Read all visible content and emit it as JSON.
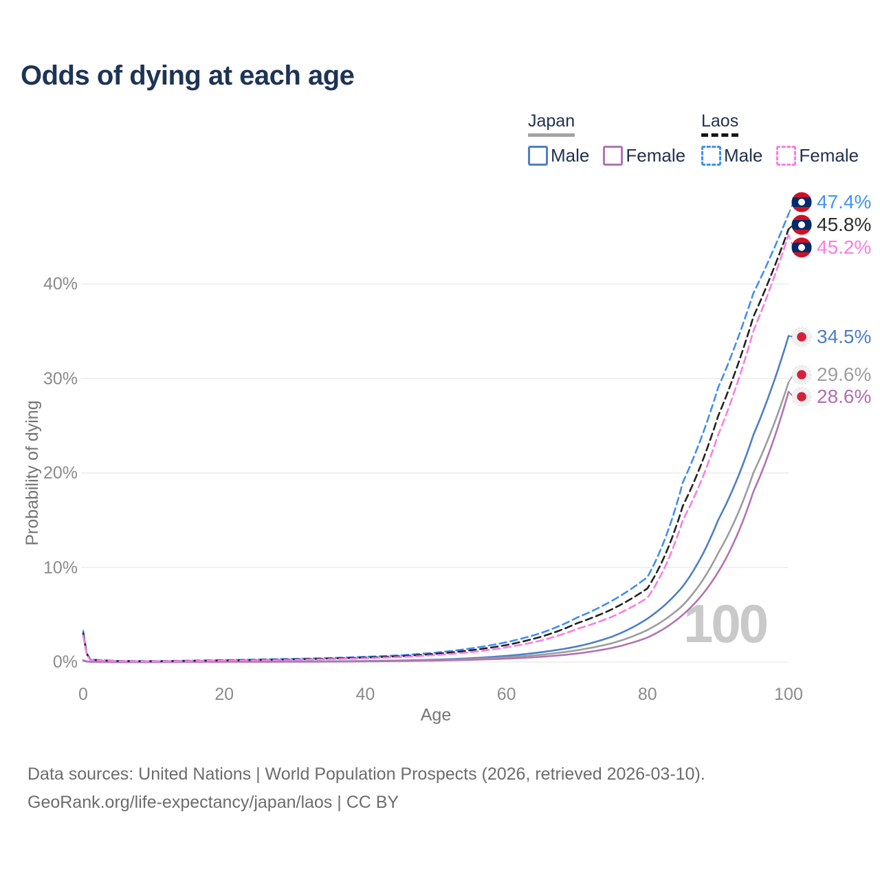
{
  "title": "Odds of dying at each age",
  "hover_age_label": "100",
  "legend": {
    "groups": [
      {
        "id": "japan",
        "label": "Japan",
        "line_style": "solid",
        "underline_color": "#a3a3a3",
        "items": [
          {
            "id": "japan_male",
            "label": "Male",
            "color": "#4d7ec8"
          },
          {
            "id": "japan_female",
            "label": "Female",
            "color": "#b273b2"
          }
        ]
      },
      {
        "id": "laos",
        "label": "Laos",
        "line_style": "dashed",
        "underline_color": "#151515",
        "items": [
          {
            "id": "laos_male",
            "label": "Male",
            "color": "#3f8df5"
          },
          {
            "id": "laos_female",
            "label": "Female",
            "color": "#fb7ce5"
          }
        ]
      }
    ]
  },
  "axes": {
    "y": {
      "title": "Probability of dying",
      "ticks": [
        "0%",
        "10%",
        "20%",
        "30%",
        "40%"
      ],
      "tick_values": [
        0,
        10,
        20,
        30,
        40
      ]
    },
    "x": {
      "title": "Age",
      "ticks": [
        "0",
        "20",
        "40",
        "60",
        "80",
        "100"
      ],
      "tick_values": [
        0,
        20,
        40,
        60,
        80,
        100
      ]
    }
  },
  "footer": {
    "line1": "Data sources: United Nations | World Population Prospects (2026, retrieved 2026-03-10).",
    "line2": "GeoRank.org/life-expectancy/japan/laos | CC BY"
  },
  "flag_colors": {
    "laos": {
      "red": "#ce1126",
      "blue": "#002a6a",
      "disc": "#ffffff"
    },
    "japan": {
      "bg": "#f1f1f1",
      "ring": "#e2e2e2",
      "dot": "#d6203c"
    }
  },
  "chart_data": {
    "type": "line",
    "title": "Odds of dying at each age",
    "xlabel": "Age",
    "ylabel": "Probability of dying",
    "xlim": [
      0,
      100
    ],
    "ylim": [
      0,
      47.5
    ],
    "grid": true,
    "legend_position": "top-right",
    "x_knots": [
      0,
      1,
      5,
      10,
      15,
      20,
      25,
      30,
      35,
      40,
      45,
      50,
      55,
      60,
      65,
      70,
      75,
      80,
      85,
      90,
      95,
      100
    ],
    "series": [
      {
        "id": "japan_male",
        "name": "Japan Male",
        "country": "japan",
        "sex": "male",
        "style": "solid",
        "color": "#4d7ec8",
        "label_color": "#4d7ec8",
        "end_label": "34.5%",
        "end_value_pct": 34.5,
        "values_pct": [
          0.19,
          0.03,
          0.01,
          0.01,
          0.03,
          0.05,
          0.05,
          0.06,
          0.08,
          0.11,
          0.17,
          0.26,
          0.41,
          0.66,
          1.05,
          1.65,
          2.7,
          4.6,
          8.0,
          15.0,
          24.0,
          34.5
        ]
      },
      {
        "id": "japan_total",
        "name": "Japan Both sexes",
        "country": "japan",
        "sex": "both",
        "style": "solid",
        "color": "#9c9c9c",
        "label_color": "#9e9e9e",
        "end_label": "29.6%",
        "end_value_pct": 29.6,
        "values_pct": [
          0.17,
          0.025,
          0.009,
          0.009,
          0.02,
          0.035,
          0.04,
          0.05,
          0.065,
          0.09,
          0.14,
          0.21,
          0.32,
          0.5,
          0.78,
          1.25,
          2.0,
          3.4,
          6.0,
          11.5,
          20.0,
          29.6
        ]
      },
      {
        "id": "japan_female",
        "name": "Japan Female",
        "country": "japan",
        "sex": "female",
        "style": "solid",
        "color": "#b273b2",
        "label_color": "#b26eb2",
        "end_label": "28.6%",
        "end_value_pct": 28.6,
        "values_pct": [
          0.16,
          0.02,
          0.008,
          0.008,
          0.015,
          0.025,
          0.03,
          0.04,
          0.05,
          0.07,
          0.11,
          0.16,
          0.24,
          0.36,
          0.56,
          0.9,
          1.5,
          2.6,
          5.0,
          9.5,
          18.0,
          28.6
        ]
      },
      {
        "id": "laos_male",
        "name": "Laos Male",
        "country": "laos",
        "sex": "male",
        "style": "dashed",
        "color": "#3f8df5",
        "label_color": "#4193f6",
        "end_label": "47.4%",
        "end_value_pct": 47.4,
        "values_pct": [
          3.3,
          0.28,
          0.12,
          0.1,
          0.15,
          0.21,
          0.27,
          0.34,
          0.43,
          0.56,
          0.72,
          1.0,
          1.45,
          2.1,
          3.1,
          4.7,
          6.5,
          9.0,
          19.0,
          29.0,
          39.0,
          47.4
        ]
      },
      {
        "id": "laos_total",
        "name": "Laos Both sexes",
        "country": "laos",
        "sex": "both",
        "style": "dashed",
        "color": "#222222",
        "label_color": "#2e2e2e",
        "end_label": "45.8%",
        "end_value_pct": 45.8,
        "values_pct": [
          3.05,
          0.25,
          0.11,
          0.09,
          0.13,
          0.18,
          0.23,
          0.29,
          0.37,
          0.48,
          0.62,
          0.87,
          1.25,
          1.8,
          2.7,
          4.1,
          5.6,
          7.8,
          16.5,
          26.0,
          36.5,
          45.8
        ]
      },
      {
        "id": "laos_female",
        "name": "Laos Female",
        "country": "laos",
        "sex": "female",
        "style": "dashed",
        "color": "#fb7ce5",
        "label_color": "#fb7ce5",
        "end_label": "45.2%",
        "end_value_pct": 45.2,
        "values_pct": [
          2.8,
          0.22,
          0.1,
          0.08,
          0.11,
          0.15,
          0.19,
          0.24,
          0.31,
          0.4,
          0.53,
          0.74,
          1.05,
          1.55,
          2.3,
          3.5,
          4.8,
          6.8,
          15.0,
          24.0,
          35.0,
          45.2
        ]
      }
    ]
  }
}
